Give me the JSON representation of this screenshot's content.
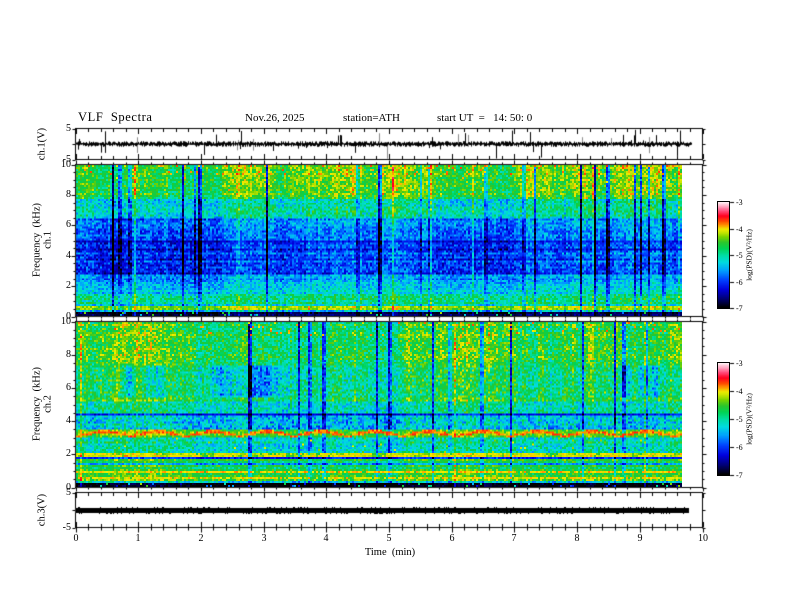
{
  "header": {
    "title": "VLF  Spectra",
    "date": "Nov.26, 2025",
    "station": "station=ATH",
    "start_ut": "start UT  =   14: 50: 0"
  },
  "panels": {
    "wave1": {
      "ylabel": "ch.1(V)",
      "yticks": [
        5,
        -5
      ],
      "ylim": [
        -5,
        5
      ]
    },
    "spec1": {
      "channel": "ch.1",
      "ylabel": "Frequency  (kHz)",
      "yticks": [
        10,
        8,
        6,
        4,
        2,
        0
      ],
      "ylim": [
        0,
        10
      ]
    },
    "spec2": {
      "channel": "ch.2",
      "ylabel": "Frequency  (kHz)",
      "yticks": [
        10,
        8,
        6,
        4,
        2,
        0
      ],
      "ylim": [
        0,
        10
      ]
    },
    "wave3": {
      "ylabel": "ch.3(V)",
      "yticks": [
        5,
        -5
      ],
      "ylim": [
        -5,
        5
      ]
    },
    "xaxis": {
      "label": "Time  (min)",
      "ticks": [
        0,
        1,
        2,
        3,
        4,
        5,
        6,
        7,
        8,
        9,
        10
      ],
      "minor_step": 0.2,
      "range": [
        0,
        10
      ]
    }
  },
  "colorbar": {
    "label": "log(PSD)(V²/Hz)",
    "ticks": [
      -3,
      -4,
      -5,
      -6,
      -7
    ],
    "range": [
      -7,
      -3
    ],
    "stops": [
      [
        0.0,
        "#000000"
      ],
      [
        0.08,
        "#000070"
      ],
      [
        0.17,
        "#0000DC"
      ],
      [
        0.26,
        "#0040FF"
      ],
      [
        0.35,
        "#00A0FF"
      ],
      [
        0.43,
        "#00DCE0"
      ],
      [
        0.5,
        "#00DEA0"
      ],
      [
        0.56,
        "#00D455"
      ],
      [
        0.62,
        "#2CC62C"
      ],
      [
        0.67,
        "#78D400"
      ],
      [
        0.71,
        "#C2E400"
      ],
      [
        0.745,
        "#F0EC00"
      ],
      [
        0.78,
        "#FF9E00"
      ],
      [
        0.82,
        "#FF4A00"
      ],
      [
        0.87,
        "#FF0020"
      ],
      [
        0.92,
        "#FF4E7E"
      ],
      [
        0.96,
        "#FFA2BE"
      ],
      [
        1.0,
        "#FFECF2"
      ]
    ]
  },
  "chart_data": [
    {
      "type": "line",
      "name": "ch1_waveform",
      "ylabel": "ch.1(V)",
      "xlabel": "Time (min)",
      "ylim": [
        -5,
        5
      ],
      "xlim": [
        0,
        10
      ],
      "description": "broadband noise around 0 V with frequent impulsive spikes reaching ±5 V",
      "signal": {
        "kind": "noise",
        "baseline_v": 0.8,
        "spike_prob": 0.07,
        "spike_max_v": 4.9,
        "data_end_min": 9.84
      }
    },
    {
      "type": "heatmap",
      "name": "ch1_spectrogram",
      "ylabel": "ch.1 Frequency (kHz)",
      "ylim": [
        0,
        10
      ],
      "xlim": [
        0,
        10
      ],
      "zlabel": "log(PSD)(V²/Hz)",
      "zlim": [
        -7,
        -3
      ],
      "x_minutes_span": [
        0,
        9.84
      ],
      "bands": [
        [
          0.0,
          0.3,
          -6.85,
          0.15
        ],
        [
          0.3,
          0.42,
          -5.5,
          0.5
        ],
        [
          0.42,
          0.62,
          -4.35,
          0.25
        ],
        [
          0.62,
          0.8,
          -5.3,
          0.45
        ],
        [
          0.8,
          1.4,
          -4.95,
          0.4
        ],
        [
          1.4,
          2.1,
          -5.3,
          0.35
        ],
        [
          2.1,
          2.8,
          -5.6,
          0.35
        ],
        [
          2.8,
          4.85,
          -6.1,
          0.4
        ],
        [
          4.85,
          5.0,
          -6.3,
          0.2
        ],
        [
          5.0,
          6.4,
          -5.75,
          0.4
        ],
        [
          6.4,
          7.8,
          -5.1,
          0.45
        ],
        [
          7.8,
          9.4,
          -4.55,
          0.35
        ],
        [
          9.4,
          10.01,
          -4.45,
          0.35
        ]
      ],
      "lines": [
        {
          "f": 0.52,
          "halfw": 0.03,
          "level": -5.4,
          "dash": 1
        }
      ],
      "specks": [
        {
          "f": [
            9.3,
            10
          ],
          "prob": 0.05,
          "level": -3.85
        },
        {
          "f": [
            9.85,
            10
          ],
          "prob": 0.1,
          "level": -3.8
        },
        {
          "f": [
            7.8,
            9.4
          ],
          "prob": 0.006,
          "level": -4.0
        }
      ],
      "row_texture": {
        "f": [
          2.8,
          4.85
        ],
        "amp": 0.28
      },
      "streaks": {
        "dark_prob": 0.05,
        "dark_depth": [
          0.7,
          2.4
        ],
        "bright_prob": 0.03,
        "bright_amp": 0.45
      }
    },
    {
      "type": "heatmap",
      "name": "ch2_spectrogram",
      "ylabel": "ch.2 Frequency (kHz)",
      "ylim": [
        0,
        10
      ],
      "xlim": [
        0,
        10
      ],
      "zlabel": "log(PSD)(V²/Hz)",
      "zlim": [
        -7,
        -3
      ],
      "x_minutes_span": [
        0,
        9.84
      ],
      "bands": [
        [
          0.0,
          0.2,
          -6.85,
          0.15
        ],
        [
          0.2,
          0.35,
          -5.2,
          0.5
        ],
        [
          0.35,
          0.52,
          -4.5,
          0.35
        ],
        [
          0.52,
          0.62,
          -4.35,
          0.3
        ],
        [
          0.62,
          0.8,
          -4.55,
          0.3
        ],
        [
          0.8,
          0.98,
          -4.25,
          0.3
        ],
        [
          0.98,
          1.35,
          -4.7,
          0.3
        ],
        [
          1.35,
          1.45,
          -5.7,
          0.3
        ],
        [
          1.45,
          1.72,
          -4.65,
          0.3
        ],
        [
          1.72,
          1.82,
          -6.0,
          0.25
        ],
        [
          1.82,
          2.1,
          -4.35,
          0.3
        ],
        [
          2.1,
          3.0,
          -5.05,
          0.45
        ],
        [
          3.0,
          3.5,
          -4.45,
          0.3
        ],
        [
          3.5,
          4.35,
          -5.35,
          0.5
        ],
        [
          4.35,
          4.5,
          -6.2,
          0.25
        ],
        [
          4.5,
          5.15,
          -5.0,
          0.45
        ],
        [
          5.15,
          5.5,
          -4.7,
          0.4
        ],
        [
          5.5,
          7.2,
          -4.8,
          0.45
        ],
        [
          7.2,
          10.01,
          -4.6,
          0.4
        ]
      ],
      "lines": [
        {
          "f": 0.87,
          "halfw": 0.04,
          "level": -3.95,
          "dash": 0.75
        },
        {
          "f": 0.57,
          "halfw": 0.04,
          "level": -4.0,
          "dash": 0.6
        }
      ],
      "specks": [
        {
          "f": [
            9.2,
            10
          ],
          "prob": 0.04,
          "level": -3.9
        },
        {
          "f": [
            2.1,
            3.0
          ],
          "prob": 0.01,
          "level": -4.2
        }
      ],
      "arcs": {
        "f": [
          3.02,
          3.48
        ],
        "period_min": 0.88,
        "level": -3.8
      },
      "blobs": {
        "f": [
          1.84,
          2.04
        ],
        "period_min": 0.7,
        "level": -4.08
      },
      "patches": {
        "f": [
          5.4,
          7.3
        ],
        "depth": 1.1
      },
      "streaks": {
        "dark_prob": 0.05,
        "dark_depth": [
          0.7,
          2.2
        ],
        "bright_prob": 0.03,
        "bright_amp": 0.45
      }
    },
    {
      "type": "line",
      "name": "ch3_waveform",
      "ylabel": "ch.3(V)",
      "xlabel": "Time (min)",
      "ylim": [
        -5,
        5
      ],
      "xlim": [
        0,
        10
      ],
      "description": "constant 0 V thick flat trace (dead / unconnected channel)",
      "signal": {
        "kind": "flat",
        "value_v": 0,
        "data_end_min": 9.8
      }
    }
  ]
}
